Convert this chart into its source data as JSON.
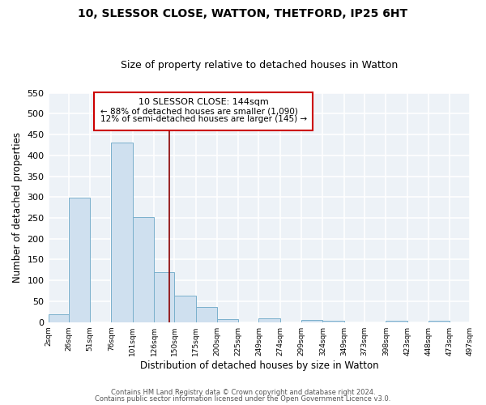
{
  "title": "10, SLESSOR CLOSE, WATTON, THETFORD, IP25 6HT",
  "subtitle": "Size of property relative to detached houses in Watton",
  "xlabel": "Distribution of detached houses by size in Watton",
  "ylabel": "Number of detached properties",
  "bar_color": "#cfe0ef",
  "bar_edge_color": "#7ab0cc",
  "bar_left_edges": [
    2,
    26,
    51,
    76,
    101,
    126,
    150,
    175,
    200,
    225,
    249,
    274,
    299,
    324,
    349,
    373,
    398,
    423,
    448,
    473
  ],
  "bar_widths": [
    24,
    25,
    25,
    25,
    25,
    24,
    25,
    25,
    25,
    24,
    25,
    25,
    25,
    25,
    24,
    25,
    25,
    25,
    25,
    24
  ],
  "bar_heights": [
    18,
    298,
    0,
    430,
    251,
    120,
    63,
    36,
    8,
    0,
    10,
    0,
    5,
    4,
    0,
    0,
    3,
    0,
    4,
    0
  ],
  "tick_labels": [
    "2sqm",
    "26sqm",
    "51sqm",
    "76sqm",
    "101sqm",
    "126sqm",
    "150sqm",
    "175sqm",
    "200sqm",
    "225sqm",
    "249sqm",
    "274sqm",
    "299sqm",
    "324sqm",
    "349sqm",
    "373sqm",
    "398sqm",
    "423sqm",
    "448sqm",
    "473sqm",
    "497sqm"
  ],
  "tick_positions": [
    2,
    26,
    51,
    76,
    101,
    126,
    150,
    175,
    200,
    225,
    249,
    274,
    299,
    324,
    349,
    373,
    398,
    423,
    448,
    473,
    497
  ],
  "ylim": [
    0,
    550
  ],
  "yticks": [
    0,
    50,
    100,
    150,
    200,
    250,
    300,
    350,
    400,
    450,
    500,
    550
  ],
  "vline_x": 144,
  "vline_color": "#8b0000",
  "annotation_title": "10 SLESSOR CLOSE: 144sqm",
  "annotation_line1": "← 88% of detached houses are smaller (1,090)",
  "annotation_line2": "12% of semi-detached houses are larger (145) →",
  "annotation_box_color": "white",
  "annotation_box_edge": "#cc0000",
  "footer1": "Contains HM Land Registry data © Crown copyright and database right 2024.",
  "footer2": "Contains public sector information licensed under the Open Government Licence v3.0.",
  "bg_color": "#edf2f7",
  "grid_color": "#ffffff",
  "fig_bg": "#ffffff"
}
